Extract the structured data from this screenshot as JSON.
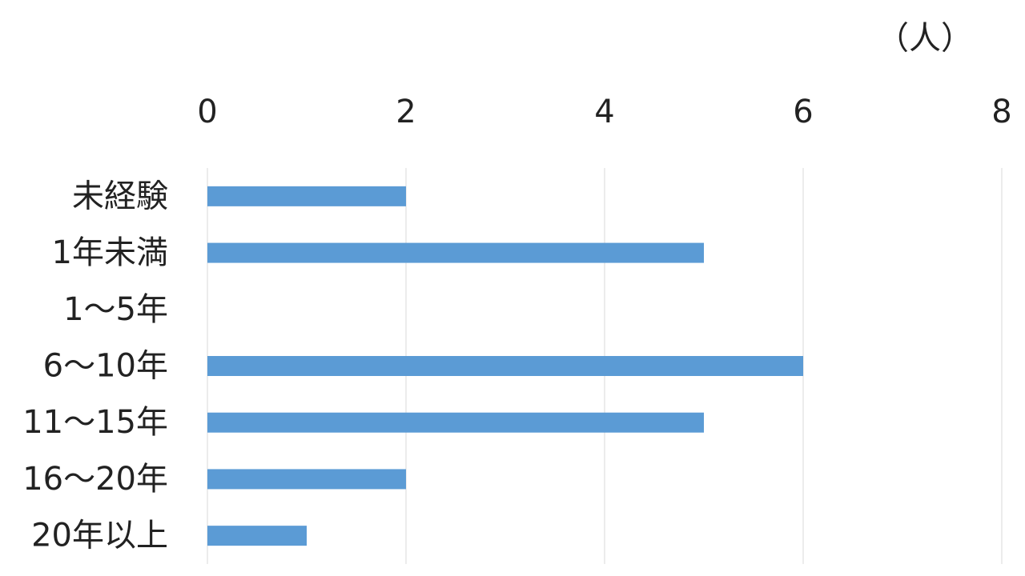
{
  "chart_data": {
    "type": "barh",
    "unit_label": "（人）",
    "categories": [
      "未経験",
      "1年未満",
      "1～5年",
      "6～10年",
      "11～15年",
      "16～20年",
      "20年以上"
    ],
    "values": [
      2,
      5,
      0,
      6,
      5,
      2,
      1
    ],
    "color": "#5b9bd5",
    "xlim": [
      0,
      8
    ],
    "xticks": [
      0,
      2,
      4,
      6,
      8
    ],
    "grid": true
  }
}
